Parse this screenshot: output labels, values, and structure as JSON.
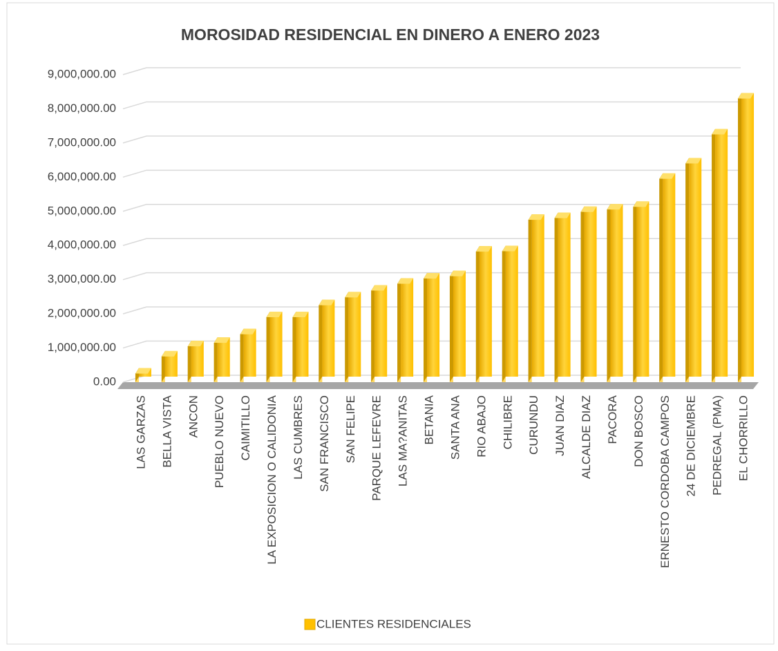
{
  "chart_data": {
    "type": "bar3d",
    "title": "MOROSIDAD RESIDENCIAL EN DINERO A ENERO 2023",
    "categories": [
      "LAS GARZAS",
      "BELLA VISTA",
      "ANCON",
      "PUEBLO NUEVO",
      "CAIMITILLO",
      "LA EXPOSICION O CALIDONIA",
      "LAS CUMBRES",
      "SAN FRANCISCO",
      "SAN FELIPE",
      "PARQUE LEFEVRE",
      "LAS MA?ANITAS",
      "BETANIA",
      "SANTA ANA",
      "RIO ABAJO",
      "CHILIBRE",
      "CURUNDU",
      "JUAN DIAZ",
      "ALCALDE DIAZ",
      "PACORA",
      "DON BOSCO",
      "ERNESTO CORDOBA CAMPOS",
      "24 DE DICIEMBRE",
      "PEDREGAL (PMA)",
      "EL CHORRILLO"
    ],
    "series": [
      {
        "name": "CLIENTES RESIDENCIALES",
        "color": "#ffc000",
        "values": [
          250000,
          750000,
          1050000,
          1150000,
          1400000,
          1900000,
          1900000,
          2250000,
          2480000,
          2680000,
          2880000,
          3030000,
          3100000,
          3820000,
          3830000,
          4750000,
          4800000,
          4980000,
          5050000,
          5130000,
          5950000,
          6400000,
          7250000,
          8300000
        ]
      }
    ],
    "ylim": [
      0,
      9000000
    ],
    "yticks": [
      {
        "value": 0,
        "label": "0.00"
      },
      {
        "value": 1000000,
        "label": "1,000,000.00"
      },
      {
        "value": 2000000,
        "label": "2,000,000.00"
      },
      {
        "value": 3000000,
        "label": "3,000,000.00"
      },
      {
        "value": 4000000,
        "label": "4,000,000.00"
      },
      {
        "value": 5000000,
        "label": "5,000,000.00"
      },
      {
        "value": 6000000,
        "label": "6,000,000.00"
      },
      {
        "value": 7000000,
        "label": "7,000,000.00"
      },
      {
        "value": 8000000,
        "label": "8,000,000.00"
      },
      {
        "value": 9000000,
        "label": "9,000,000.00"
      }
    ],
    "grid": true,
    "legend": "bottom"
  }
}
